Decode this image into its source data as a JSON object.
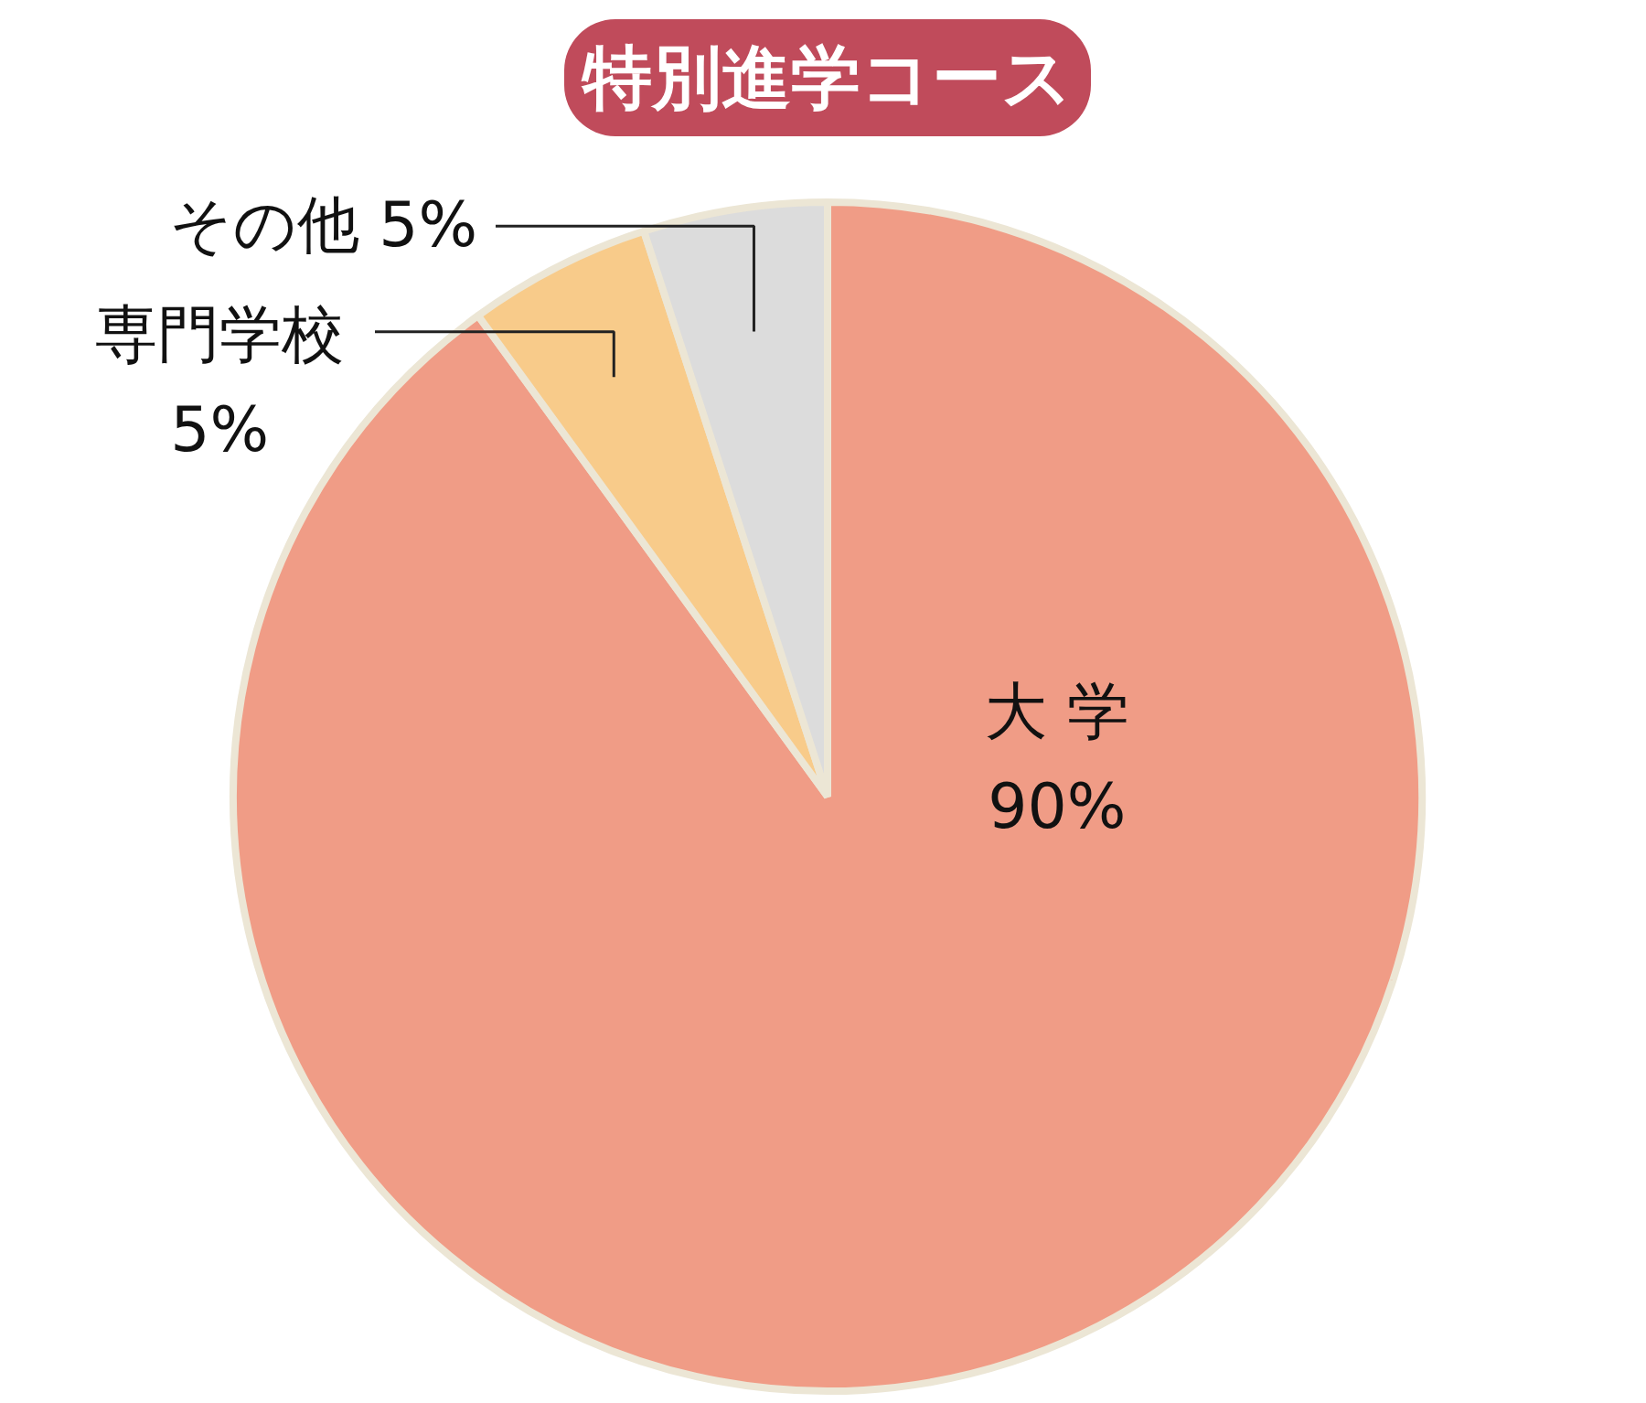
{
  "chart_data": {
    "type": "pie",
    "title": "特別進学コース",
    "categories": [
      "大 学",
      "専門学校",
      "その他"
    ],
    "values": [
      90,
      5,
      5
    ],
    "colors": [
      "#f09c86",
      "#f8cb8a",
      "#dcdcdc"
    ],
    "value_labels": [
      "90%",
      "5%",
      "5%"
    ]
  }
}
